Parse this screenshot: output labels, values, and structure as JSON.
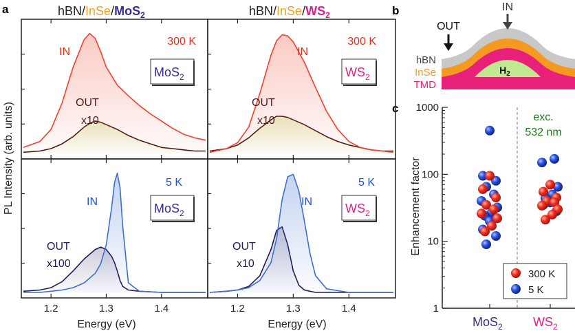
{
  "panel_labels": {
    "a": "a",
    "b": "b",
    "c": "c"
  },
  "colors": {
    "in_300k": "#f0402a",
    "out_300k": "#4a1a14",
    "in_5k": "#3c6fd0",
    "out_5k": "#221a55",
    "mos2": "#3a2a95",
    "ws2": "#e0208a",
    "insel": "#f5a020",
    "green_text": "#1a7a1a",
    "red_text": "#e83018",
    "blue_text": "#2050d0",
    "hbn_layer": "#c8c8c8",
    "insel_layer": "#f59a20",
    "tmd_layer": "#e8207a",
    "h2_fill": "#c0e890"
  },
  "panel_a": {
    "left_title": {
      "p1": "hBN/",
      "p2": "InSe",
      "p3": "/",
      "p4": "MoS",
      "p5": "2"
    },
    "right_title": {
      "p1": "hBN/",
      "p2": "InSe",
      "p3": "/",
      "p4": "WS",
      "p5": "2"
    },
    "ylabel": "PL Intensity (arb. units)",
    "xlabel": "Energy (eV)",
    "temp_300k": "300 K",
    "temp_5k": "5 K",
    "label_in": "IN",
    "label_out": "OUT",
    "x10": "x10",
    "x100": "x100",
    "mos2_box": {
      "main": "MoS",
      "sub": "2"
    },
    "ws2_box": {
      "main": "WS",
      "sub": "2"
    }
  },
  "panel_b": {
    "out": "OUT",
    "in": "IN",
    "hbn": "hBN",
    "insel": "InSe",
    "tmd": "TMD",
    "h2": {
      "main": "H",
      "sub": "2"
    }
  },
  "chart_data": [
    {
      "type": "line",
      "title": "hBN/InSe/MoS2 300 K",
      "xlabel": "Energy (eV)",
      "ylabel": "PL Intensity (arb. units)",
      "xlim": [
        1.15,
        1.48
      ],
      "ylim": [
        0,
        1.05
      ],
      "x": [
        1.15,
        1.18,
        1.2,
        1.22,
        1.24,
        1.26,
        1.27,
        1.28,
        1.29,
        1.3,
        1.32,
        1.34,
        1.36,
        1.38,
        1.4,
        1.42,
        1.44,
        1.46,
        1.48
      ],
      "series": [
        {
          "name": "IN",
          "values": [
            0.05,
            0.1,
            0.2,
            0.42,
            0.72,
            0.95,
            1.0,
            0.96,
            0.85,
            0.72,
            0.57,
            0.48,
            0.4,
            0.33,
            0.27,
            0.21,
            0.16,
            0.13,
            0.11
          ]
        },
        {
          "name": "OUT x10",
          "values": [
            0.01,
            0.02,
            0.04,
            0.08,
            0.14,
            0.22,
            0.25,
            0.27,
            0.26,
            0.24,
            0.2,
            0.15,
            0.11,
            0.08,
            0.05,
            0.04,
            0.03,
            0.02,
            0.02
          ]
        }
      ],
      "annotations": [
        "IN",
        "OUT",
        "x10",
        "300 K",
        "MoS2"
      ]
    },
    {
      "type": "line",
      "title": "hBN/InSe/WS2 300 K",
      "xlabel": "Energy (eV)",
      "ylabel": "",
      "xlim": [
        1.15,
        1.48
      ],
      "ylim": [
        0,
        1.05
      ],
      "x": [
        1.15,
        1.18,
        1.2,
        1.22,
        1.24,
        1.26,
        1.27,
        1.28,
        1.29,
        1.3,
        1.32,
        1.34,
        1.36,
        1.38,
        1.4,
        1.42,
        1.44,
        1.46,
        1.48
      ],
      "series": [
        {
          "name": "IN",
          "values": [
            0.01,
            0.04,
            0.09,
            0.22,
            0.5,
            0.82,
            0.94,
            0.99,
            0.98,
            0.93,
            0.76,
            0.55,
            0.35,
            0.2,
            0.1,
            0.05,
            0.03,
            0.02,
            0.01
          ]
        },
        {
          "name": "OUT x10",
          "values": [
            0.02,
            0.04,
            0.07,
            0.13,
            0.21,
            0.28,
            0.31,
            0.31,
            0.3,
            0.28,
            0.24,
            0.19,
            0.14,
            0.1,
            0.07,
            0.05,
            0.03,
            0.02,
            0.02
          ]
        }
      ],
      "annotations": [
        "IN",
        "OUT",
        "x10",
        "300 K",
        "WS2"
      ]
    },
    {
      "type": "line",
      "title": "hBN/InSe/MoS2 5 K",
      "xlabel": "Energy (eV)",
      "ylabel": "PL Intensity (arb. units)",
      "xlim": [
        1.15,
        1.48
      ],
      "ylim": [
        0,
        1.05
      ],
      "x": [
        1.15,
        1.18,
        1.2,
        1.22,
        1.24,
        1.26,
        1.28,
        1.29,
        1.3,
        1.31,
        1.315,
        1.32,
        1.325,
        1.33,
        1.34,
        1.36,
        1.4,
        1.48
      ],
      "series": [
        {
          "name": "IN",
          "values": [
            0.0,
            0.0,
            0.01,
            0.02,
            0.04,
            0.08,
            0.16,
            0.24,
            0.4,
            0.72,
            0.92,
            1.0,
            0.88,
            0.55,
            0.08,
            0.01,
            0.0,
            0.0
          ]
        },
        {
          "name": "OUT x100",
          "values": [
            0.01,
            0.02,
            0.04,
            0.09,
            0.18,
            0.28,
            0.36,
            0.38,
            0.36,
            0.3,
            0.25,
            0.18,
            0.1,
            0.05,
            0.02,
            0.01,
            0.0,
            0.0
          ]
        }
      ],
      "annotations": [
        "IN",
        "OUT",
        "x100",
        "5 K",
        "MoS2"
      ],
      "xticks": [
        1.2,
        1.3,
        1.4
      ]
    },
    {
      "type": "line",
      "title": "hBN/InSe/WS2 5 K",
      "xlabel": "Energy (eV)",
      "ylabel": "",
      "xlim": [
        1.15,
        1.48
      ],
      "ylim": [
        0,
        1.05
      ],
      "x": [
        1.15,
        1.18,
        1.2,
        1.22,
        1.24,
        1.26,
        1.27,
        1.28,
        1.29,
        1.3,
        1.31,
        1.32,
        1.33,
        1.34,
        1.36,
        1.4,
        1.48
      ],
      "series": [
        {
          "name": "IN",
          "values": [
            0.0,
            0.01,
            0.02,
            0.04,
            0.1,
            0.25,
            0.45,
            0.78,
            0.97,
            0.99,
            0.85,
            0.6,
            0.33,
            0.14,
            0.03,
            0.0,
            0.0
          ]
        },
        {
          "name": "OUT x10",
          "values": [
            0.0,
            0.01,
            0.02,
            0.05,
            0.14,
            0.36,
            0.52,
            0.55,
            0.4,
            0.18,
            0.06,
            0.02,
            0.01,
            0.0,
            0.0,
            0.0,
            0.0
          ]
        }
      ],
      "annotations": [
        "IN",
        "OUT",
        "x10",
        "5 K",
        "WS2"
      ],
      "xticks": [
        1.2,
        1.3,
        1.4
      ]
    },
    {
      "type": "scatter",
      "title": "Enhancement factor",
      "ylabel": "Enhancement factor",
      "yscale": "log",
      "ylim": [
        1,
        1000
      ],
      "yticks": [
        1,
        10,
        100,
        1000
      ],
      "categories": [
        "MoS2",
        "WS2"
      ],
      "annotation": {
        "line1": "exc.",
        "line2": "532 nm"
      },
      "legend": {
        "placement": "bottom-right",
        "entries": [
          "300 K",
          "5 K"
        ]
      },
      "series": [
        {
          "name": "300 K",
          "points": [
            {
              "cat": "MoS2",
              "y": 95
            },
            {
              "cat": "MoS2",
              "y": 60
            },
            {
              "cat": "MoS2",
              "y": 45
            },
            {
              "cat": "MoS2",
              "y": 35
            },
            {
              "cat": "MoS2",
              "y": 30
            },
            {
              "cat": "MoS2",
              "y": 26
            },
            {
              "cat": "MoS2",
              "y": 22
            },
            {
              "cat": "MoS2",
              "y": 17
            },
            {
              "cat": "MoS2",
              "y": 14
            },
            {
              "cat": "WS2",
              "y": 70
            },
            {
              "cat": "WS2",
              "y": 55
            },
            {
              "cat": "WS2",
              "y": 45
            },
            {
              "cat": "WS2",
              "y": 40
            },
            {
              "cat": "WS2",
              "y": 38
            },
            {
              "cat": "WS2",
              "y": 34
            },
            {
              "cat": "WS2",
              "y": 30
            },
            {
              "cat": "WS2",
              "y": 25
            },
            {
              "cat": "WS2",
              "y": 21
            }
          ]
        },
        {
          "name": "5 K",
          "points": [
            {
              "cat": "MoS2",
              "y": 450
            },
            {
              "cat": "MoS2",
              "y": 95
            },
            {
              "cat": "MoS2",
              "y": 80
            },
            {
              "cat": "MoS2",
              "y": 65
            },
            {
              "cat": "MoS2",
              "y": 50
            },
            {
              "cat": "MoS2",
              "y": 40
            },
            {
              "cat": "MoS2",
              "y": 32
            },
            {
              "cat": "MoS2",
              "y": 27
            },
            {
              "cat": "MoS2",
              "y": 24
            },
            {
              "cat": "MoS2",
              "y": 20
            },
            {
              "cat": "MoS2",
              "y": 15
            },
            {
              "cat": "MoS2",
              "y": 12
            },
            {
              "cat": "MoS2",
              "y": 9
            },
            {
              "cat": "WS2",
              "y": 170
            },
            {
              "cat": "WS2",
              "y": 150
            },
            {
              "cat": "WS2",
              "y": 65
            },
            {
              "cat": "WS2",
              "y": 50
            },
            {
              "cat": "WS2",
              "y": 44
            },
            {
              "cat": "WS2",
              "y": 38
            },
            {
              "cat": "WS2",
              "y": 35
            },
            {
              "cat": "WS2",
              "y": 28
            }
          ]
        }
      ]
    }
  ]
}
